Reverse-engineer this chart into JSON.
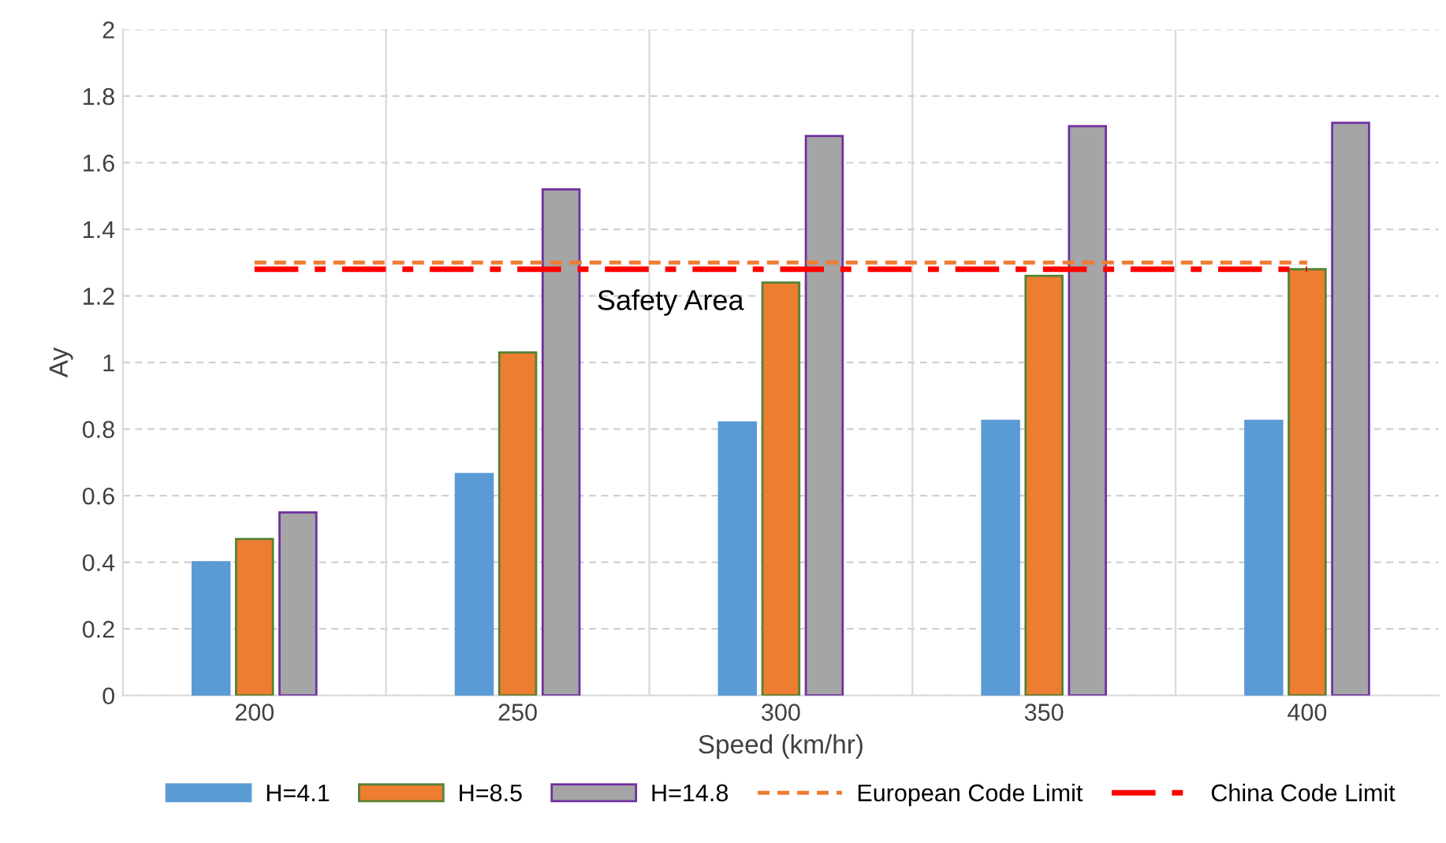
{
  "chart_data": {
    "type": "bar",
    "xlabel": "Speed (km/hr)",
    "ylabel": "Ay",
    "categories": [
      "200",
      "250",
      "300",
      "350",
      "400"
    ],
    "series": [
      {
        "name": "H=4.1",
        "color": "#5b9bd5",
        "values": [
          0.4,
          0.665,
          0.82,
          0.825,
          0.825
        ]
      },
      {
        "name": "H=8.5",
        "color": "#ed7d31",
        "values": [
          0.47,
          1.03,
          1.24,
          1.26,
          1.28
        ]
      },
      {
        "name": "H=14.8",
        "color": "#a5a5a5",
        "values": [
          0.55,
          1.52,
          1.68,
          1.71,
          1.72
        ]
      },
      {
        "name": "European Code Limit",
        "type": "line",
        "color": "#ed7d31",
        "line_style": "dashed",
        "values": [
          1.3,
          1.3,
          1.3,
          1.3,
          1.3
        ]
      },
      {
        "name": "China Code Limit",
        "type": "line",
        "color": "#ff0000",
        "line_style": "dashdot",
        "values": [
          1.28,
          1.28,
          1.28,
          1.28,
          1.28
        ]
      }
    ],
    "annotations": [
      "Safety Area"
    ],
    "ylim": [
      0,
      2
    ],
    "yticks": [
      0,
      0.2,
      0.4,
      0.6,
      0.8,
      1,
      1.2,
      1.4,
      1.6,
      1.8,
      2
    ],
    "grid": true,
    "legend": "bottom"
  }
}
